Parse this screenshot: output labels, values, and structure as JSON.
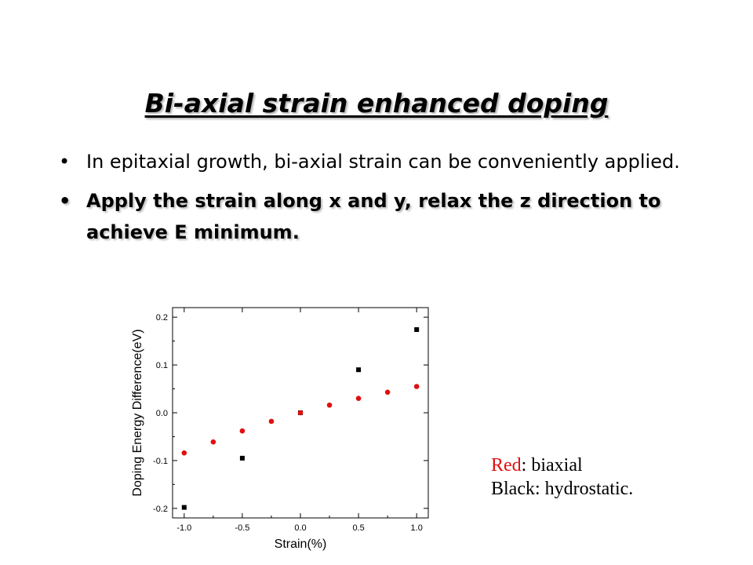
{
  "slide": {
    "title": "Bi-axial strain enhanced doping",
    "bullets": [
      {
        "text": "In epitaxial growth, bi-axial strain can be conveniently applied.",
        "emphasis": false
      },
      {
        "text": "Apply the strain along x and y, relax the z direction to achieve E minimum.",
        "emphasis": true
      }
    ],
    "bullet_glyph": "•"
  },
  "legend": {
    "red_word": "Red",
    "red_rest": ": biaxial",
    "black_line": "Black: hydrostatic."
  },
  "chart_data": {
    "type": "scatter",
    "xlabel": "Strain(%)",
    "ylabel": "Doping Energy Difference(eV)",
    "xlim": [
      -1.1,
      1.1
    ],
    "ylim": [
      -0.22,
      0.22
    ],
    "xticks": [
      -1.0,
      -0.5,
      0.0,
      0.5,
      1.0
    ],
    "xtick_labels": [
      "-1.0",
      "-0.5",
      "0.0",
      "0.5",
      "1.0"
    ],
    "yticks": [
      -0.2,
      -0.1,
      0.0,
      0.1,
      0.2
    ],
    "ytick_labels": [
      "-0.2",
      "-0.1",
      "0.0",
      "0.1",
      "0.2"
    ],
    "grid": false,
    "series": [
      {
        "marker": "square",
        "color": "#000000",
        "x": [
          -1.0,
          -0.5,
          0.0,
          0.5,
          1.0
        ],
        "y": [
          -0.198,
          -0.095,
          0.0,
          0.09,
          0.174
        ]
      },
      {
        "marker": "circle",
        "color": "#e01010",
        "x": [
          -1.0,
          -0.75,
          -0.5,
          -0.25,
          0.0,
          0.25,
          0.5,
          0.75,
          1.0
        ],
        "y": [
          -0.084,
          -0.061,
          -0.038,
          -0.018,
          0.0,
          0.016,
          0.03,
          0.043,
          0.055
        ]
      }
    ]
  }
}
